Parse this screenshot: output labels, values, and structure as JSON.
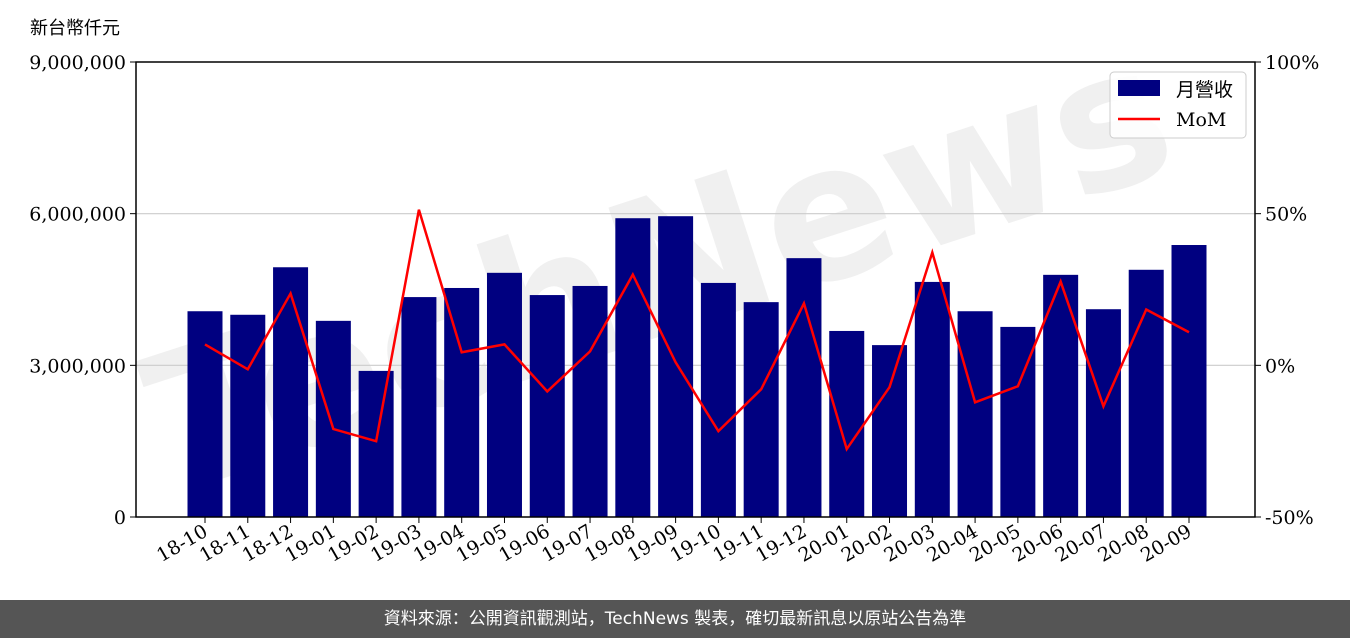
{
  "unit_label": "新台幣仟元",
  "footer": "資料來源：公開資訊觀測站，TechNews 製表，確切最新訊息以原站公告為準",
  "watermark": "TechNews",
  "chart_data": {
    "type": "bar+line",
    "categories": [
      "18-10",
      "18-11",
      "18-12",
      "19-01",
      "19-02",
      "19-03",
      "19-04",
      "19-05",
      "19-06",
      "19-07",
      "19-08",
      "19-09",
      "19-10",
      "19-11",
      "19-12",
      "20-01",
      "20-02",
      "20-03",
      "20-04",
      "20-05",
      "20-06",
      "20-07",
      "20-08",
      "20-09"
    ],
    "series": [
      {
        "name": "月營收",
        "type": "bar",
        "axis": "left",
        "color": "#000080",
        "values": [
          4070000,
          4000000,
          4940000,
          3880000,
          2890000,
          4350000,
          4530000,
          4830000,
          4390000,
          4570000,
          5910000,
          5950000,
          4630000,
          4250000,
          5120000,
          3680000,
          3400000,
          4650000,
          4070000,
          3760000,
          4790000,
          4110000,
          4890000,
          5380000
        ]
      },
      {
        "name": "MoM",
        "type": "line",
        "axis": "right",
        "color": "#ff0000",
        "values": [
          6.9,
          -1.3,
          23.7,
          -21.0,
          -25.0,
          51.3,
          4.3,
          6.9,
          -8.6,
          4.6,
          29.9,
          1.0,
          -21.7,
          -7.9,
          20.4,
          -27.6,
          -7.2,
          37.2,
          -12.2,
          -6.9,
          27.6,
          -13.5,
          18.4,
          10.9
        ]
      }
    ],
    "left_axis": {
      "ylim": [
        0,
        9000000
      ],
      "ticks": [
        0,
        3000000,
        6000000,
        9000000
      ],
      "tick_labels": [
        "0",
        "3,000,000",
        "6,000,000",
        "9,000,000"
      ]
    },
    "right_axis": {
      "ylim": [
        -50,
        100
      ],
      "ticks": [
        -50,
        0,
        50,
        100
      ],
      "tick_labels": [
        "-50%",
        "0%",
        "50%",
        "100%"
      ]
    },
    "grid": "horizontal",
    "legend": "top-right"
  }
}
